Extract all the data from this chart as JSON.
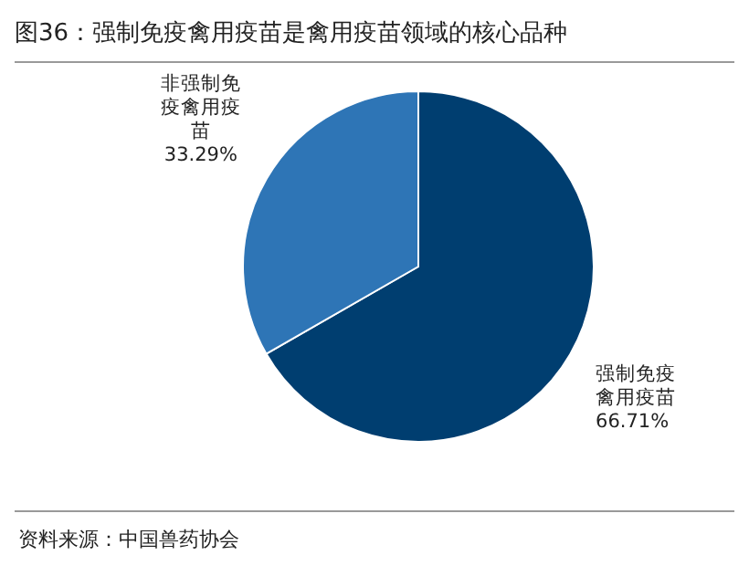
{
  "chart_data": {
    "type": "pie",
    "title": "图36：强制免疫禽用疫苗是禽用疫苗领域的核心品种",
    "categories": [
      "强制免疫禽用疫苗",
      "非强制免疫禽用疫苗"
    ],
    "values": [
      66.71,
      33.29
    ],
    "colors": [
      "#003e70",
      "#2e75b6"
    ],
    "value_labels": [
      "66.71%",
      "33.29%"
    ],
    "annotations": [
      "资料来源：中国兽药协会"
    ]
  }
}
